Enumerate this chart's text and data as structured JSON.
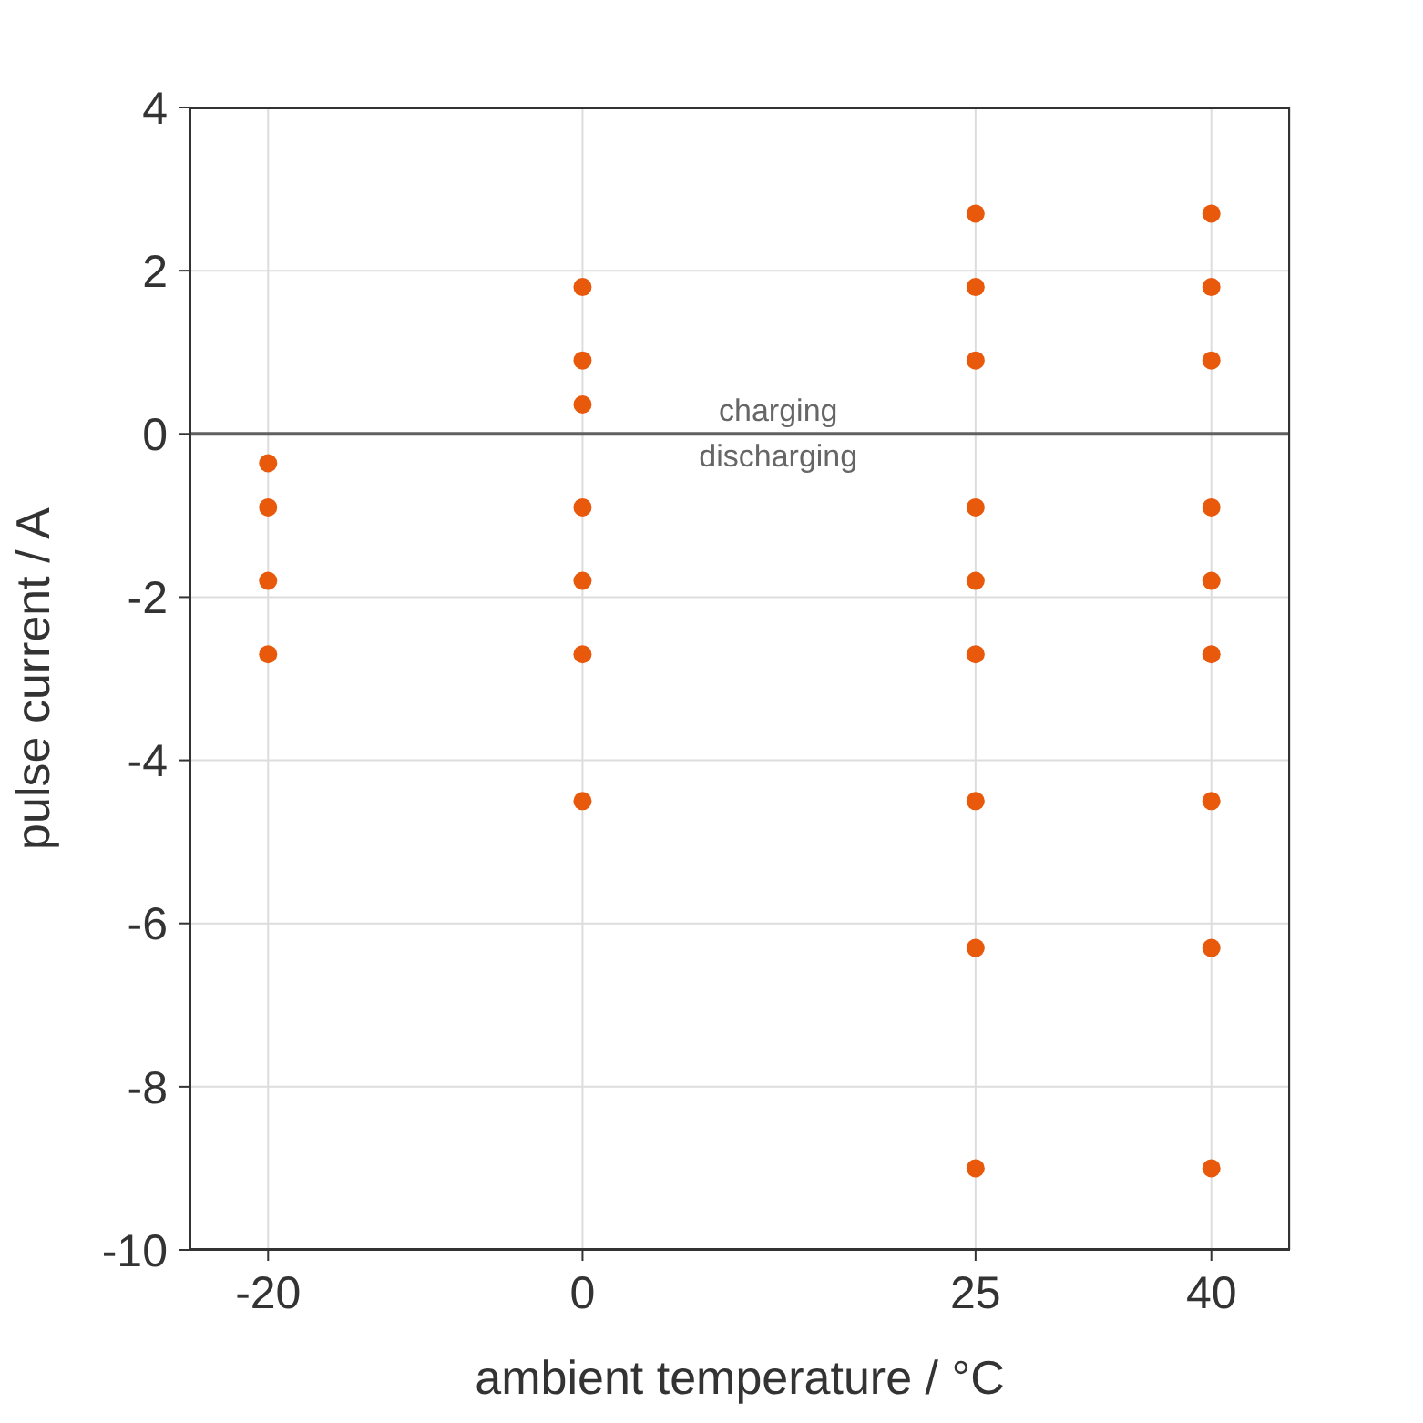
{
  "chart_data": {
    "type": "scatter",
    "xlabel": "ambient temperature / °C",
    "ylabel": "pulse current / A",
    "x": [
      -20,
      -20,
      -20,
      -20,
      0,
      0,
      0,
      0,
      0,
      0,
      0,
      25,
      25,
      25,
      25,
      25,
      25,
      25,
      25,
      25,
      40,
      40,
      40,
      40,
      40,
      40,
      40,
      40,
      40
    ],
    "values": [
      -0.36,
      -0.9,
      -1.8,
      -2.7,
      1.8,
      0.9,
      0.36,
      -0.9,
      -1.8,
      -2.7,
      -4.5,
      2.7,
      1.8,
      0.9,
      -0.9,
      -1.8,
      -2.7,
      -4.5,
      -6.3,
      -9,
      2.7,
      1.8,
      0.9,
      -0.9,
      -1.8,
      -2.7,
      -4.5,
      -6.3,
      -9
    ],
    "color": "#e8590c",
    "marker": "circle",
    "grid": true,
    "xlim": [
      -25,
      45
    ],
    "xticks": [
      -20,
      0,
      25,
      40
    ],
    "ylim": [
      -10,
      4
    ],
    "yticks": [
      -10,
      -8,
      -6,
      -4,
      -2,
      0,
      2,
      4
    ],
    "ref_lines": [
      {
        "axis": "y",
        "value": 0,
        "color": "#606060"
      }
    ],
    "annotations": [
      "charging",
      "discharging"
    ]
  }
}
